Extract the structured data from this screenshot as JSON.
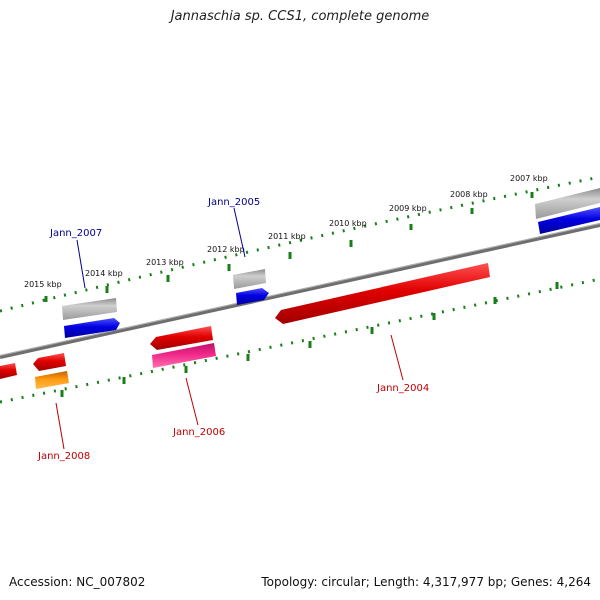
{
  "title": "Jannaschia sp. CCS1, complete genome",
  "footer": {
    "accession": "Accession: NC_007802",
    "summary": "Topology: circular; Length: 4,317,977 bp; Genes: 4,264"
  },
  "colors": {
    "backbone": "#7a7a7a",
    "tick": "#1a7f1a",
    "label_forward": "#00008b",
    "label_reverse": "#c00000",
    "gene_red": "#e60000",
    "gene_blue": "#0000e6",
    "gene_gray": "#b4b4b4",
    "gene_pink": "#e0187a",
    "gene_orange": "#ff8c00"
  },
  "ticks": [
    {
      "label": "2015 kbp"
    },
    {
      "label": "2014 kbp"
    },
    {
      "label": "2013 kbp"
    },
    {
      "label": "2012 kbp"
    },
    {
      "label": "2011 kbp"
    },
    {
      "label": "2010 kbp"
    },
    {
      "label": "2009 kbp"
    },
    {
      "label": "2008 kbp"
    },
    {
      "label": "2007 kbp"
    }
  ],
  "gene_labels": [
    {
      "text": "Jann_2007",
      "strand": "forward"
    },
    {
      "text": "Jann_2005",
      "strand": "forward"
    },
    {
      "text": "Jann_2004",
      "strand": "reverse"
    },
    {
      "text": "Jann_2006",
      "strand": "reverse"
    },
    {
      "text": "Jann_2008",
      "strand": "reverse"
    }
  ]
}
